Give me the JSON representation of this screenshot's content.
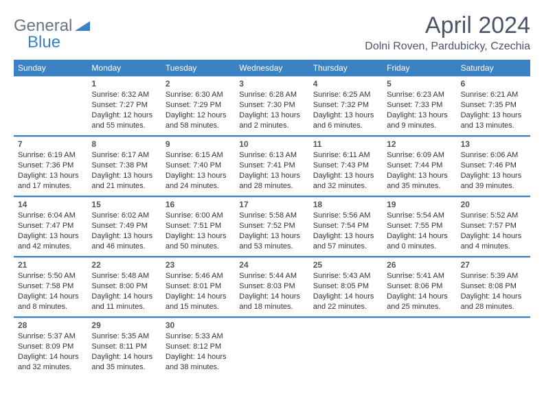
{
  "brand": {
    "text1": "General",
    "text2": "Blue"
  },
  "title": "April 2024",
  "location": "Dolni Roven, Pardubicky, Czechia",
  "colors": {
    "accent": "#3b82c4",
    "header_text": "#ffffff",
    "body_text": "#333333",
    "muted_text": "#6b7280",
    "title_text": "#4a5568",
    "rule": "#cbd5e0",
    "background": "#ffffff"
  },
  "calendar": {
    "type": "table",
    "columns": [
      "Sunday",
      "Monday",
      "Tuesday",
      "Wednesday",
      "Thursday",
      "Friday",
      "Saturday"
    ],
    "font_size_header": 12,
    "font_size_daynum": 12,
    "font_size_body": 11,
    "weeks": [
      [
        null,
        {
          "n": "1",
          "sr": "Sunrise: 6:32 AM",
          "ss": "Sunset: 7:27 PM",
          "d1": "Daylight: 12 hours",
          "d2": "and 55 minutes."
        },
        {
          "n": "2",
          "sr": "Sunrise: 6:30 AM",
          "ss": "Sunset: 7:29 PM",
          "d1": "Daylight: 12 hours",
          "d2": "and 58 minutes."
        },
        {
          "n": "3",
          "sr": "Sunrise: 6:28 AM",
          "ss": "Sunset: 7:30 PM",
          "d1": "Daylight: 13 hours",
          "d2": "and 2 minutes."
        },
        {
          "n": "4",
          "sr": "Sunrise: 6:25 AM",
          "ss": "Sunset: 7:32 PM",
          "d1": "Daylight: 13 hours",
          "d2": "and 6 minutes."
        },
        {
          "n": "5",
          "sr": "Sunrise: 6:23 AM",
          "ss": "Sunset: 7:33 PM",
          "d1": "Daylight: 13 hours",
          "d2": "and 9 minutes."
        },
        {
          "n": "6",
          "sr": "Sunrise: 6:21 AM",
          "ss": "Sunset: 7:35 PM",
          "d1": "Daylight: 13 hours",
          "d2": "and 13 minutes."
        }
      ],
      [
        {
          "n": "7",
          "sr": "Sunrise: 6:19 AM",
          "ss": "Sunset: 7:36 PM",
          "d1": "Daylight: 13 hours",
          "d2": "and 17 minutes."
        },
        {
          "n": "8",
          "sr": "Sunrise: 6:17 AM",
          "ss": "Sunset: 7:38 PM",
          "d1": "Daylight: 13 hours",
          "d2": "and 21 minutes."
        },
        {
          "n": "9",
          "sr": "Sunrise: 6:15 AM",
          "ss": "Sunset: 7:40 PM",
          "d1": "Daylight: 13 hours",
          "d2": "and 24 minutes."
        },
        {
          "n": "10",
          "sr": "Sunrise: 6:13 AM",
          "ss": "Sunset: 7:41 PM",
          "d1": "Daylight: 13 hours",
          "d2": "and 28 minutes."
        },
        {
          "n": "11",
          "sr": "Sunrise: 6:11 AM",
          "ss": "Sunset: 7:43 PM",
          "d1": "Daylight: 13 hours",
          "d2": "and 32 minutes."
        },
        {
          "n": "12",
          "sr": "Sunrise: 6:09 AM",
          "ss": "Sunset: 7:44 PM",
          "d1": "Daylight: 13 hours",
          "d2": "and 35 minutes."
        },
        {
          "n": "13",
          "sr": "Sunrise: 6:06 AM",
          "ss": "Sunset: 7:46 PM",
          "d1": "Daylight: 13 hours",
          "d2": "and 39 minutes."
        }
      ],
      [
        {
          "n": "14",
          "sr": "Sunrise: 6:04 AM",
          "ss": "Sunset: 7:47 PM",
          "d1": "Daylight: 13 hours",
          "d2": "and 42 minutes."
        },
        {
          "n": "15",
          "sr": "Sunrise: 6:02 AM",
          "ss": "Sunset: 7:49 PM",
          "d1": "Daylight: 13 hours",
          "d2": "and 46 minutes."
        },
        {
          "n": "16",
          "sr": "Sunrise: 6:00 AM",
          "ss": "Sunset: 7:51 PM",
          "d1": "Daylight: 13 hours",
          "d2": "and 50 minutes."
        },
        {
          "n": "17",
          "sr": "Sunrise: 5:58 AM",
          "ss": "Sunset: 7:52 PM",
          "d1": "Daylight: 13 hours",
          "d2": "and 53 minutes."
        },
        {
          "n": "18",
          "sr": "Sunrise: 5:56 AM",
          "ss": "Sunset: 7:54 PM",
          "d1": "Daylight: 13 hours",
          "d2": "and 57 minutes."
        },
        {
          "n": "19",
          "sr": "Sunrise: 5:54 AM",
          "ss": "Sunset: 7:55 PM",
          "d1": "Daylight: 14 hours",
          "d2": "and 0 minutes."
        },
        {
          "n": "20",
          "sr": "Sunrise: 5:52 AM",
          "ss": "Sunset: 7:57 PM",
          "d1": "Daylight: 14 hours",
          "d2": "and 4 minutes."
        }
      ],
      [
        {
          "n": "21",
          "sr": "Sunrise: 5:50 AM",
          "ss": "Sunset: 7:58 PM",
          "d1": "Daylight: 14 hours",
          "d2": "and 8 minutes."
        },
        {
          "n": "22",
          "sr": "Sunrise: 5:48 AM",
          "ss": "Sunset: 8:00 PM",
          "d1": "Daylight: 14 hours",
          "d2": "and 11 minutes."
        },
        {
          "n": "23",
          "sr": "Sunrise: 5:46 AM",
          "ss": "Sunset: 8:01 PM",
          "d1": "Daylight: 14 hours",
          "d2": "and 15 minutes."
        },
        {
          "n": "24",
          "sr": "Sunrise: 5:44 AM",
          "ss": "Sunset: 8:03 PM",
          "d1": "Daylight: 14 hours",
          "d2": "and 18 minutes."
        },
        {
          "n": "25",
          "sr": "Sunrise: 5:43 AM",
          "ss": "Sunset: 8:05 PM",
          "d1": "Daylight: 14 hours",
          "d2": "and 22 minutes."
        },
        {
          "n": "26",
          "sr": "Sunrise: 5:41 AM",
          "ss": "Sunset: 8:06 PM",
          "d1": "Daylight: 14 hours",
          "d2": "and 25 minutes."
        },
        {
          "n": "27",
          "sr": "Sunrise: 5:39 AM",
          "ss": "Sunset: 8:08 PM",
          "d1": "Daylight: 14 hours",
          "d2": "and 28 minutes."
        }
      ],
      [
        {
          "n": "28",
          "sr": "Sunrise: 5:37 AM",
          "ss": "Sunset: 8:09 PM",
          "d1": "Daylight: 14 hours",
          "d2": "and 32 minutes."
        },
        {
          "n": "29",
          "sr": "Sunrise: 5:35 AM",
          "ss": "Sunset: 8:11 PM",
          "d1": "Daylight: 14 hours",
          "d2": "and 35 minutes."
        },
        {
          "n": "30",
          "sr": "Sunrise: 5:33 AM",
          "ss": "Sunset: 8:12 PM",
          "d1": "Daylight: 14 hours",
          "d2": "and 38 minutes."
        },
        null,
        null,
        null,
        null
      ]
    ]
  }
}
